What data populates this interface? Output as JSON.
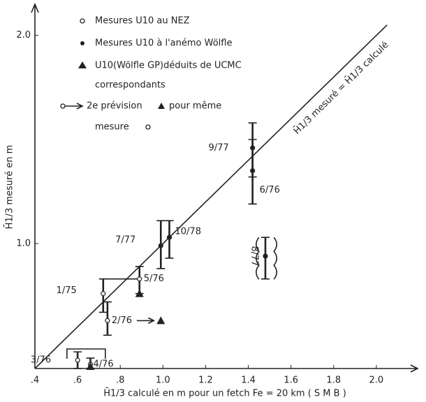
{
  "chart_data": {
    "type": "scatter",
    "x_label": "H̄1/3 calculé  en m pour un fetch  Fe = 20 km  ( S M B )",
    "y_label": "H̄1/3  mesuré en m",
    "diagonal_label": "H̄1/3 mesuré = H̄1/3 calculé",
    "xlim": [
      0.4,
      2.2
    ],
    "ylim": [
      0.4,
      2.15
    ],
    "xticks": [
      {
        "value": 0.4,
        "label": ".4"
      },
      {
        "value": 0.6,
        "label": ".6"
      },
      {
        "value": 0.8,
        "label": ".8"
      },
      {
        "value": 1.0,
        "label": "1.0"
      },
      {
        "value": 1.2,
        "label": "1.2"
      },
      {
        "value": 1.4,
        "label": "1.4"
      },
      {
        "value": 1.6,
        "label": "1.6"
      },
      {
        "value": 1.8,
        "label": "1.8"
      },
      {
        "value": 2.0,
        "label": "2.0"
      }
    ],
    "yticks": [
      {
        "value": 1.0,
        "label": "1.0"
      },
      {
        "value": 2.0,
        "label": "2.0"
      }
    ],
    "legend": {
      "open": "Mesures U10 au NEZ",
      "filled": "Mesures U10 à l'anémo Wölfle",
      "triangle": "U10(Wölfle GP)déduits de UCMC",
      "triangle_2": "correspondants",
      "arrow_1": "2e prévision",
      "arrow_2": "pour même",
      "arrow_3": "mesure"
    },
    "points": [
      {
        "label": "9/77",
        "marker": "filled",
        "x": 1.42,
        "y": 1.46,
        "err": [
          1.32,
          1.58
        ]
      },
      {
        "label": "6/76",
        "marker": "filled",
        "x": 1.42,
        "y": 1.35,
        "err": [
          1.19,
          1.5
        ]
      },
      {
        "label": "7/77",
        "marker": "filled",
        "x": 0.99,
        "y": 0.99,
        "err": [
          0.88,
          1.11
        ]
      },
      {
        "label": "10/78",
        "marker": "filled",
        "x": 1.03,
        "y": 1.03,
        "err": [
          0.93,
          1.11
        ]
      },
      {
        "label": "8/77",
        "marker": "filled",
        "x": 1.48,
        "y": 0.94,
        "err": [
          0.83,
          1.03
        ]
      },
      {
        "label": "5/76",
        "marker": "open",
        "x": 0.89,
        "y": 0.83,
        "err": [
          0.76,
          0.89
        ]
      },
      {
        "label": "1/75",
        "marker": "open",
        "x": 0.72,
        "y": 0.76,
        "err": [
          0.67,
          0.83
        ]
      },
      {
        "label": "2/76",
        "marker": "open",
        "x": 0.74,
        "y": 0.63,
        "err": [
          0.56,
          0.72
        ]
      },
      {
        "label": "3/76",
        "marker": "open",
        "x": 0.6,
        "y": 0.44,
        "err": [
          0.4,
          0.48
        ]
      },
      {
        "label": "4/76",
        "marker": "open",
        "x": 0.66,
        "y": 0.42,
        "err": [
          0.4,
          0.45
        ]
      }
    ],
    "triangles": {
      "x": [
        0.89,
        0.99,
        0.66
      ],
      "y": [
        0.76,
        0.63,
        0.41
      ]
    }
  }
}
